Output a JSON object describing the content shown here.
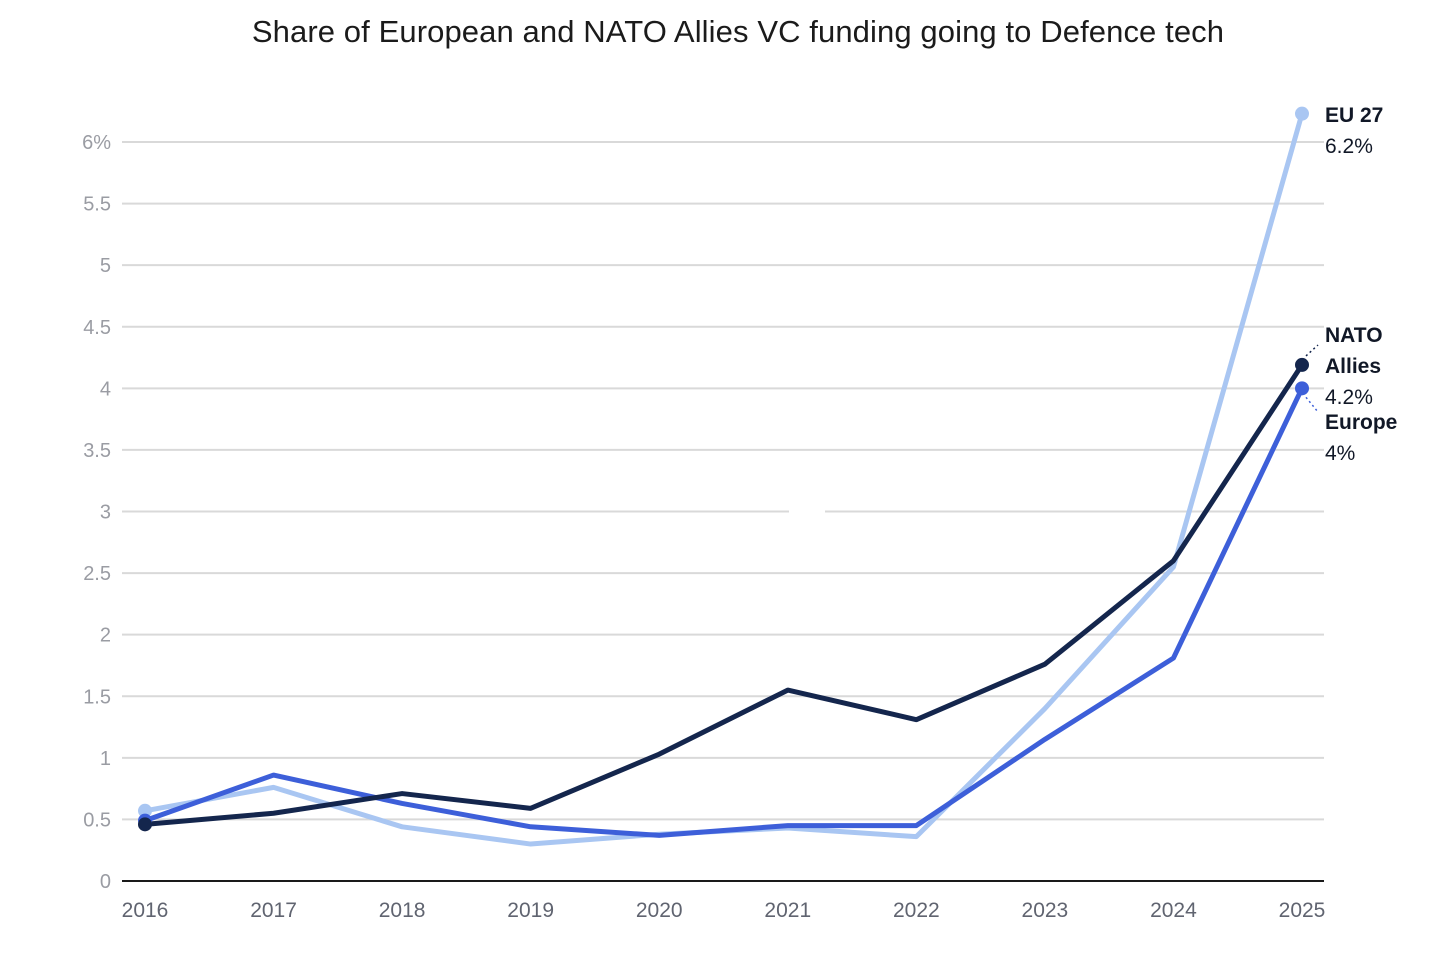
{
  "chart_data": {
    "type": "line",
    "title": "Share of European and NATO Allies VC funding going to Defence tech",
    "xlabel": "",
    "ylabel": "",
    "x": [
      "2016",
      "2017",
      "2018",
      "2019",
      "2020",
      "2021",
      "2022",
      "2023",
      "2024",
      "2025"
    ],
    "ylim": [
      0,
      6
    ],
    "yticks": [
      0,
      0.5,
      1,
      1.5,
      2,
      2.5,
      3,
      3.5,
      4,
      4.5,
      5,
      5.5,
      6
    ],
    "ytick_labels": [
      "0",
      "0.5",
      "1",
      "1.5",
      "2",
      "2.5",
      "3",
      "3.5",
      "4",
      "4.5",
      "5",
      "5.5",
      "6%"
    ],
    "grid": true,
    "series": [
      {
        "name": "EU 27",
        "label_lines": [
          "EU 27"
        ],
        "end_label": "6.2%",
        "color": "#a9c6f2",
        "values": [
          0.57,
          0.76,
          0.44,
          0.3,
          0.38,
          0.43,
          0.36,
          1.4,
          2.55,
          6.23
        ]
      },
      {
        "name": "Europe",
        "label_lines": [
          "Europe"
        ],
        "end_label": "4%",
        "color": "#3d5fd9",
        "values": [
          0.49,
          0.86,
          0.63,
          0.44,
          0.37,
          0.45,
          0.45,
          1.15,
          1.81,
          4.0
        ]
      },
      {
        "name": "NATO Allies",
        "label_lines": [
          "NATO",
          "Allies"
        ],
        "end_label": "4.2%",
        "color": "#14264d",
        "values": [
          0.46,
          0.55,
          0.71,
          0.59,
          1.03,
          1.55,
          1.31,
          1.76,
          2.6,
          4.19
        ]
      }
    ]
  }
}
